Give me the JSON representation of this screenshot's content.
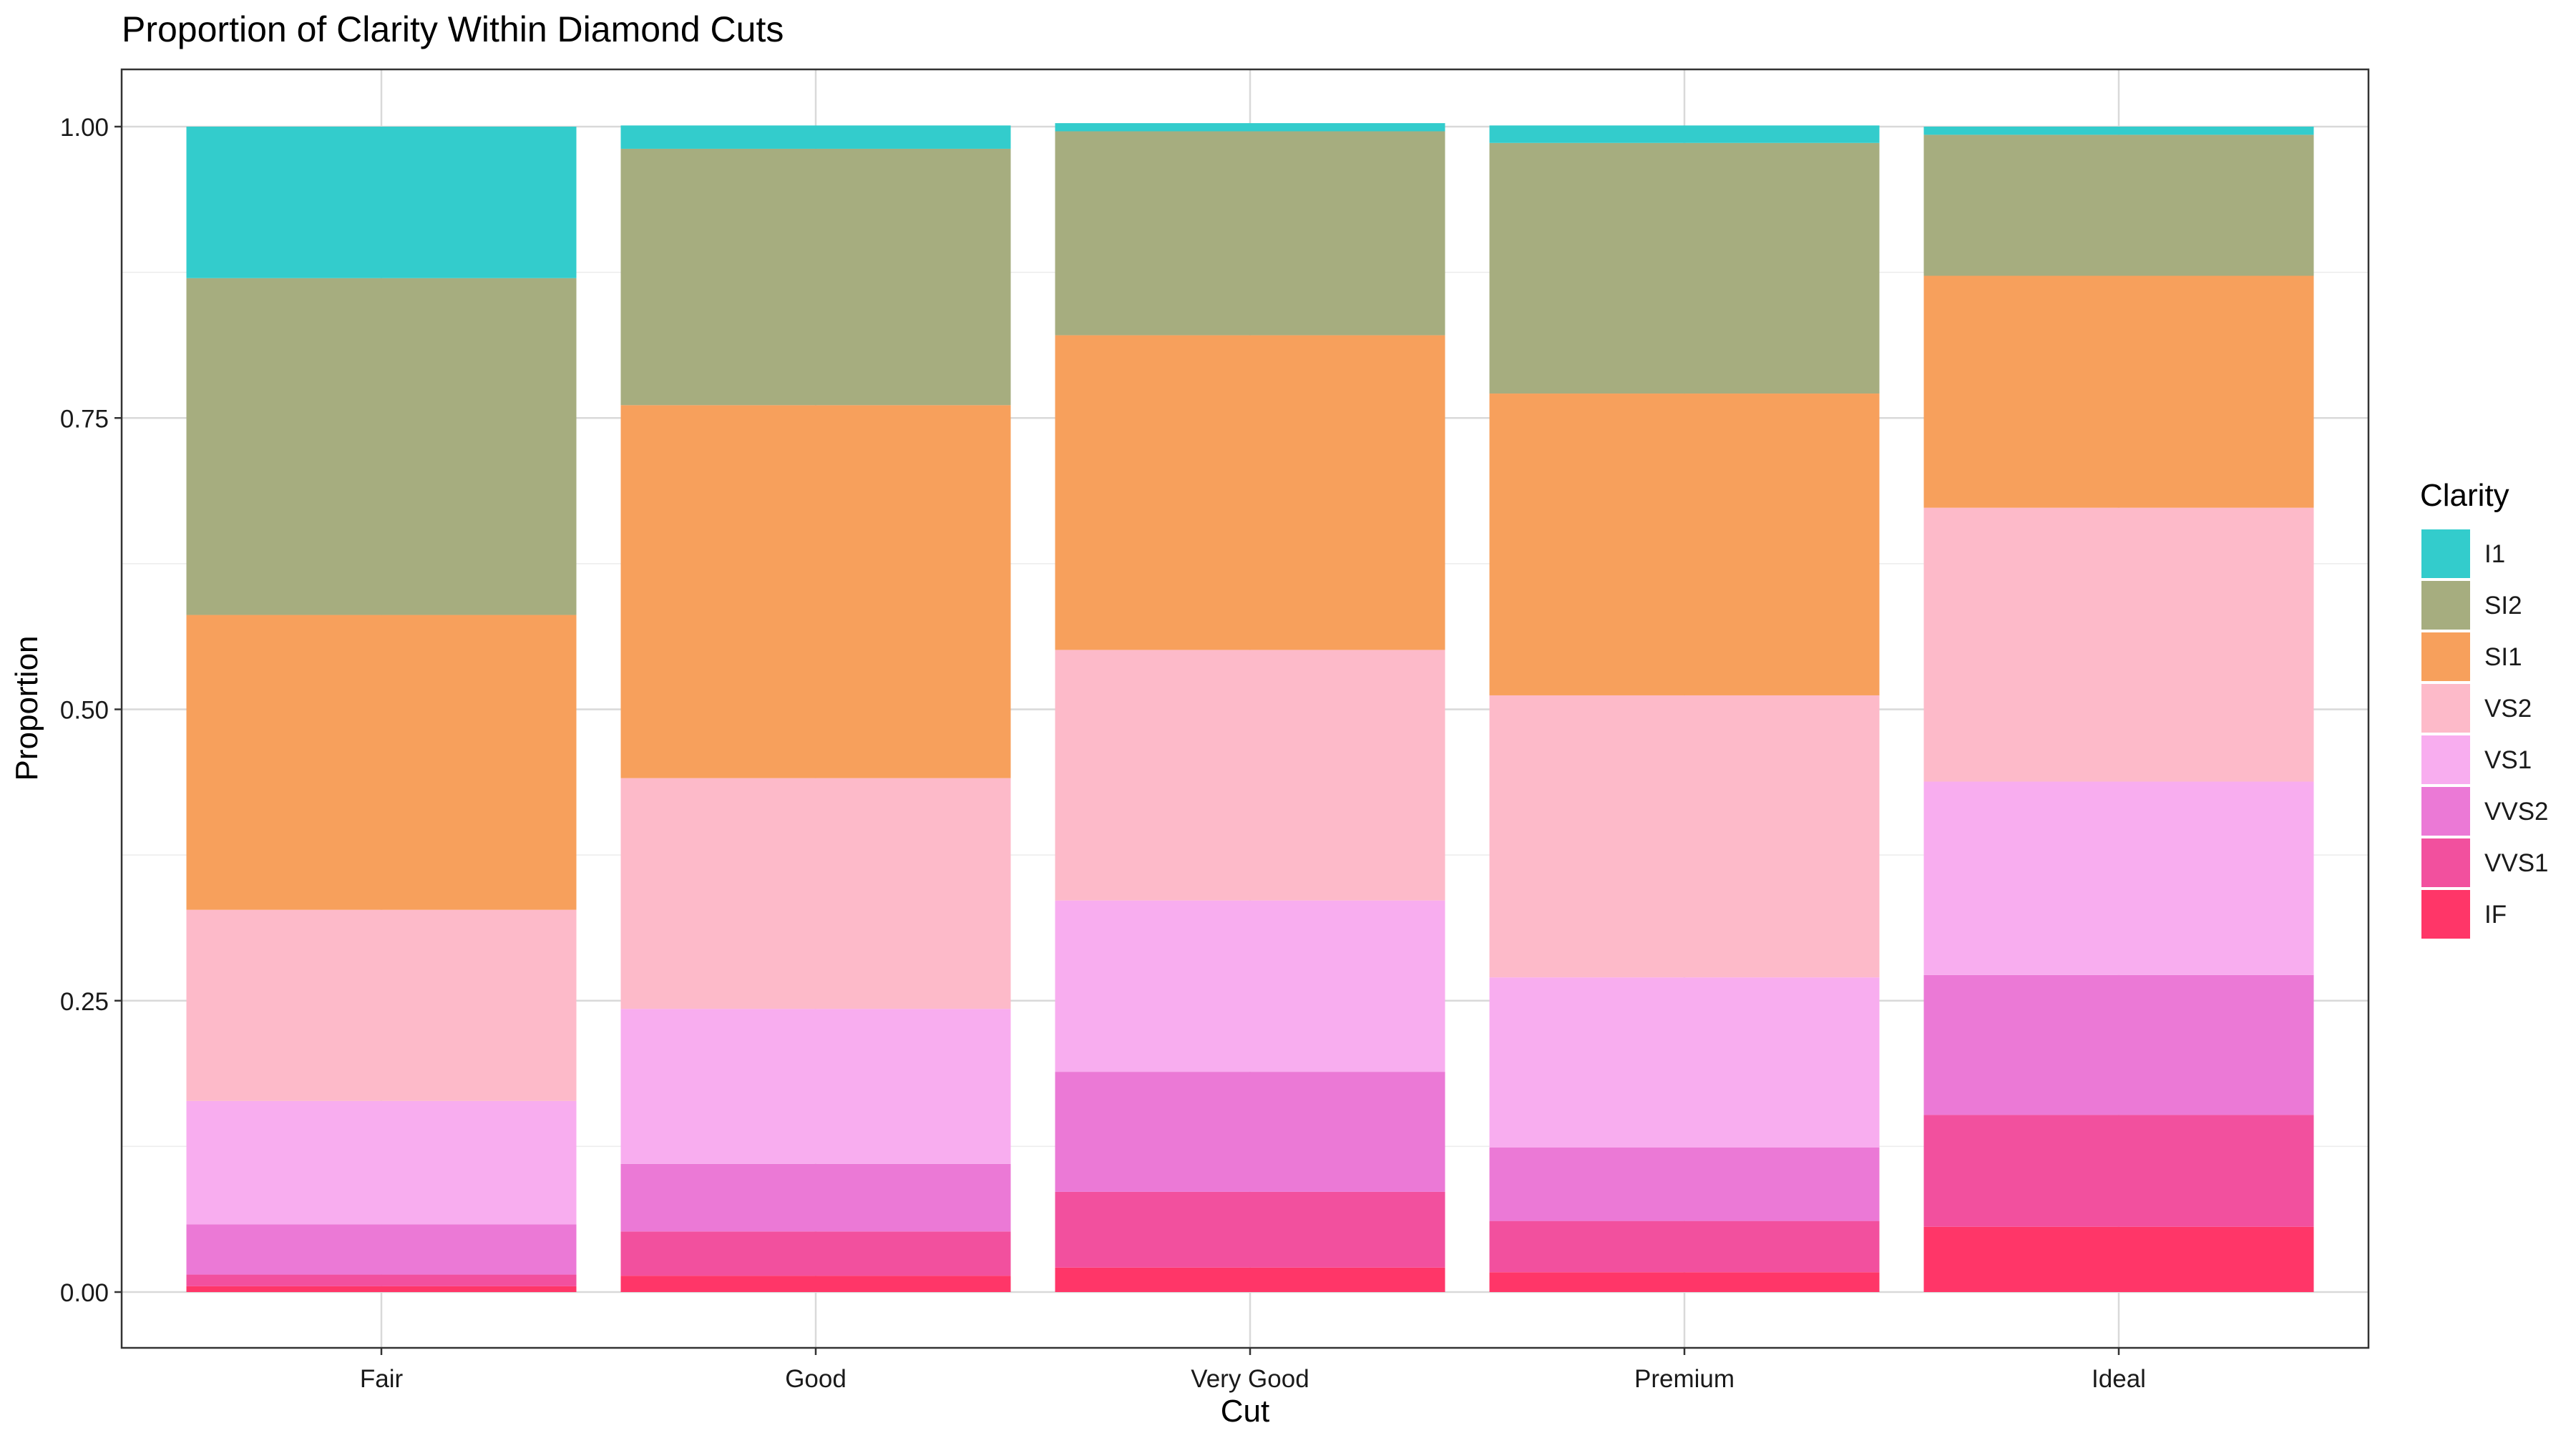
{
  "chart_data": {
    "type": "bar",
    "stacked": true,
    "normalized": true,
    "title": "Proportion of Clarity Within Diamond Cuts",
    "xlabel": "Cut",
    "ylabel": "Proportion",
    "categories": [
      "Fair",
      "Good",
      "Very Good",
      "Premium",
      "Ideal"
    ],
    "ylim": [
      0,
      1
    ],
    "yticks": [
      0,
      0.25,
      0.5,
      0.75,
      1
    ],
    "ytick_labels": [
      "0.00",
      "0.25",
      "0.50",
      "0.75",
      "1.00"
    ],
    "grid": true,
    "legend": {
      "title": "Clarity",
      "position": "right"
    },
    "series": [
      {
        "name": "I1",
        "color": "#33CCCC",
        "values": [
          0.13,
          0.02,
          0.007,
          0.015,
          0.007
        ]
      },
      {
        "name": "SI2",
        "color": "#A6AD7F",
        "values": [
          0.289,
          0.22,
          0.175,
          0.215,
          0.121
        ]
      },
      {
        "name": "SI1",
        "color": "#F7A05C",
        "values": [
          0.253,
          0.32,
          0.27,
          0.259,
          0.199
        ]
      },
      {
        "name": "VS2",
        "color": "#FDBAC9",
        "values": [
          0.164,
          0.198,
          0.215,
          0.242,
          0.235
        ]
      },
      {
        "name": "VS1",
        "color": "#F8ADEF",
        "values": [
          0.106,
          0.133,
          0.147,
          0.146,
          0.166
        ]
      },
      {
        "name": "VVS2",
        "color": "#EB79D6",
        "values": [
          0.043,
          0.058,
          0.103,
          0.063,
          0.12
        ]
      },
      {
        "name": "VVS1",
        "color": "#F2509E",
        "values": [
          0.01,
          0.038,
          0.065,
          0.044,
          0.096
        ]
      },
      {
        "name": "IF",
        "color": "#FF3668",
        "values": [
          0.005,
          0.014,
          0.021,
          0.017,
          0.056
        ]
      }
    ]
  }
}
